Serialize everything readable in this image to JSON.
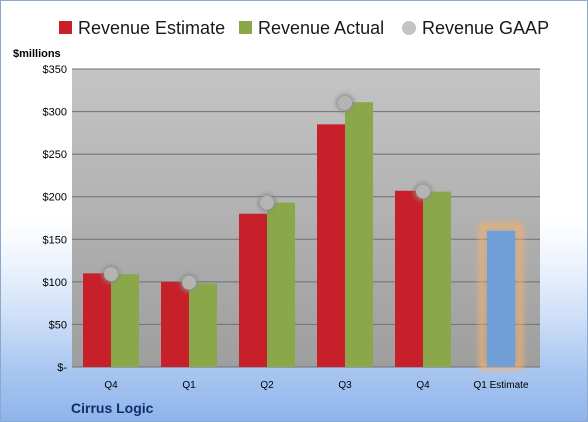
{
  "chart_data": {
    "type": "bar",
    "categories": [
      "Q4",
      "Q1",
      "Q2",
      "Q3",
      "Q4",
      "Q1 Estimate"
    ],
    "series": [
      {
        "name": "Revenue Estimate",
        "values": [
          110,
          100,
          180,
          285,
          207,
          null
        ]
      },
      {
        "name": "Revenue Actual",
        "values": [
          109,
          98,
          193,
          311,
          206,
          160
        ]
      },
      {
        "name": "Revenue GAAP",
        "values": [
          109,
          99,
          193,
          310,
          206,
          null
        ]
      }
    ],
    "ylabel": "$millions",
    "ylim": [
      0,
      350
    ],
    "yticks": [
      0,
      50,
      100,
      150,
      200,
      250,
      300,
      350
    ],
    "ytick_labels": [
      "$-",
      "$50",
      "$100",
      "$150",
      "$200",
      "$250",
      "$300",
      "$350"
    ],
    "grid": true,
    "legend": "top",
    "highlighted_category": "Q1 Estimate",
    "colors": {
      "estimate": "#c8202a",
      "actual": "#8aa84a",
      "gaap": "#b8b8b8",
      "forecast_bar": "#6f9fd6",
      "forecast_glow": "#f5b06a",
      "plot_background": "#bebebe"
    }
  },
  "footer": {
    "company": "Cirrus Logic"
  }
}
